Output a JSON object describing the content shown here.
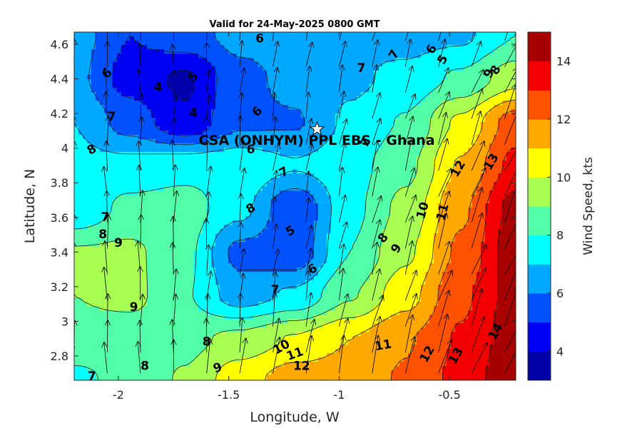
{
  "chart_data": {
    "type": "heatmap",
    "subtype": "filled-contour with wind vectors",
    "title": "Valid for 24-May-2025 0800 GMT",
    "xlabel": "Longitude, W",
    "ylabel": "Latitude, N",
    "colorbar_label": "Wind Speed, kts",
    "xlim": [
      -2.2,
      -0.2
    ],
    "ylim": [
      2.66,
      4.67
    ],
    "x_ticks": [
      -2,
      -1.5,
      -1,
      -0.5
    ],
    "x_tick_labels": [
      "-2",
      "-1.5",
      "-1",
      "-0.5"
    ],
    "y_ticks": [
      2.8,
      3.0,
      3.2,
      3.4,
      3.6,
      3.8,
      4.0,
      4.2,
      4.4,
      4.6
    ],
    "y_tick_labels": [
      "2.8",
      "3",
      "3.2",
      "3.4",
      "3.6",
      "3.8",
      "4",
      "4.2",
      "4.4",
      "4.6"
    ],
    "clim": [
      3,
      15
    ],
    "colorbar_ticks": [
      4,
      6,
      8,
      10,
      12,
      14
    ],
    "colorbar_tick_labels": [
      "4",
      "6",
      "8",
      "10",
      "12",
      "14"
    ],
    "levels": [
      3,
      4,
      5,
      6,
      7,
      8,
      9,
      10,
      11,
      12,
      13,
      14,
      15
    ],
    "level_colors": [
      "#0000a8",
      "#0000f5",
      "#0052ff",
      "#00a8ff",
      "#00ffff",
      "#52ffa8",
      "#a8ff52",
      "#ffff00",
      "#ffa800",
      "#ff5200",
      "#f50000",
      "#a80000"
    ],
    "station": {
      "lon": -1.1,
      "lat": 4.11,
      "label": "CSA (ONHYM) PPL EBS - Ghana",
      "marker": "white star"
    },
    "wind_speed_grid": {
      "lons": [
        -2.2,
        -1.95,
        -1.7,
        -1.45,
        -1.2,
        -0.95,
        -0.7,
        -0.45,
        -0.2
      ],
      "lats": [
        4.65,
        4.4,
        4.15,
        3.9,
        3.65,
        3.4,
        3.15,
        2.9,
        2.67
      ],
      "values": [
        [
          6.5,
          5.0,
          5.6,
          6.3,
          6.5,
          6.9,
          6.6,
          6.8,
          8.0
        ],
        [
          6.3,
          4.6,
          3.8,
          5.7,
          6.3,
          6.8,
          7.3,
          8.2,
          9.6
        ],
        [
          7.0,
          5.6,
          4.2,
          5.8,
          5.9,
          7.2,
          8.1,
          10.2,
          12.5
        ],
        [
          7.3,
          7.3,
          7.6,
          7.7,
          7.1,
          7.6,
          8.7,
          11.1,
          13.3
        ],
        [
          7.1,
          8.3,
          8.5,
          7.3,
          5.1,
          7.7,
          9.3,
          11.8,
          14.4
        ],
        [
          9.1,
          9.2,
          8.3,
          5.7,
          5.3,
          8.0,
          9.8,
          12.2,
          14.6
        ],
        [
          9.0,
          9.3,
          8.1,
          6.5,
          7.2,
          8.9,
          10.6,
          12.8,
          14.4
        ],
        [
          8.6,
          8.4,
          8.7,
          9.3,
          10.1,
          11.0,
          11.9,
          13.1,
          14.6
        ],
        [
          7.8,
          8.3,
          9.1,
          10.6,
          11.5,
          11.5,
          12.1,
          13.3,
          14.9
        ]
      ]
    },
    "contour_labels": [
      {
        "text": "6",
        "lon": -1.36,
        "lat": 4.63,
        "rot": 0
      },
      {
        "text": "7",
        "lon": -0.9,
        "lat": 4.46,
        "rot": 0
      },
      {
        "text": "7",
        "lon": -0.75,
        "lat": 4.54,
        "rot": -60
      },
      {
        "text": "6",
        "lon": -0.58,
        "lat": 4.57,
        "rot": -60
      },
      {
        "text": "5",
        "lon": -0.53,
        "lat": 4.51,
        "rot": -60
      },
      {
        "text": "9",
        "lon": -0.32,
        "lat": 4.43,
        "rot": -60
      },
      {
        "text": "8",
        "lon": -0.29,
        "lat": 4.45,
        "rot": -60
      },
      {
        "text": "6",
        "lon": -2.05,
        "lat": 4.43,
        "rot": -45
      },
      {
        "text": "5",
        "lon": -1.66,
        "lat": 4.41,
        "rot": -40
      },
      {
        "text": "4",
        "lon": -1.82,
        "lat": 4.35,
        "rot": 0
      },
      {
        "text": "4",
        "lon": -1.66,
        "lat": 4.2,
        "rot": 0
      },
      {
        "text": "7",
        "lon": -2.03,
        "lat": 4.18,
        "rot": 0
      },
      {
        "text": "6",
        "lon": -1.37,
        "lat": 4.21,
        "rot": -45
      },
      {
        "text": "8",
        "lon": -2.12,
        "lat": 3.99,
        "rot": -30
      },
      {
        "text": "6",
        "lon": -1.4,
        "lat": 3.99,
        "rot": 0
      },
      {
        "text": "7",
        "lon": -0.88,
        "lat": 4.03,
        "rot": -60
      },
      {
        "text": "7",
        "lon": -1.25,
        "lat": 3.86,
        "rot": -30
      },
      {
        "text": "12",
        "lon": -0.46,
        "lat": 3.88,
        "rot": -60
      },
      {
        "text": "13",
        "lon": -0.31,
        "lat": 3.92,
        "rot": -60
      },
      {
        "text": "8",
        "lon": -1.4,
        "lat": 3.65,
        "rot": -30
      },
      {
        "text": "10",
        "lon": -0.62,
        "lat": 3.64,
        "rot": -75
      },
      {
        "text": "11",
        "lon": -0.53,
        "lat": 3.63,
        "rot": -75
      },
      {
        "text": "7",
        "lon": -2.06,
        "lat": 3.6,
        "rot": 0
      },
      {
        "text": "8",
        "lon": -2.07,
        "lat": 3.5,
        "rot": 0
      },
      {
        "text": "5",
        "lon": -1.22,
        "lat": 3.52,
        "rot": -30
      },
      {
        "text": "9",
        "lon": -2.0,
        "lat": 3.45,
        "rot": 0
      },
      {
        "text": "8",
        "lon": -0.8,
        "lat": 3.48,
        "rot": -50
      },
      {
        "text": "9",
        "lon": -0.74,
        "lat": 3.42,
        "rot": -60
      },
      {
        "text": "6",
        "lon": -1.12,
        "lat": 3.3,
        "rot": -30
      },
      {
        "text": "7",
        "lon": -1.29,
        "lat": 3.18,
        "rot": 0
      },
      {
        "text": "9",
        "lon": -1.93,
        "lat": 3.08,
        "rot": 0
      },
      {
        "text": "14",
        "lon": -0.29,
        "lat": 2.94,
        "rot": -60
      },
      {
        "text": "8",
        "lon": -1.6,
        "lat": 2.88,
        "rot": 0
      },
      {
        "text": "11",
        "lon": -0.8,
        "lat": 2.86,
        "rot": -10
      },
      {
        "text": "10",
        "lon": -1.26,
        "lat": 2.85,
        "rot": -30
      },
      {
        "text": "11",
        "lon": -1.2,
        "lat": 2.81,
        "rot": -20
      },
      {
        "text": "12",
        "lon": -0.6,
        "lat": 2.81,
        "rot": -60
      },
      {
        "text": "13",
        "lon": -0.47,
        "lat": 2.8,
        "rot": -60
      },
      {
        "text": "8",
        "lon": -1.88,
        "lat": 2.74,
        "rot": 0
      },
      {
        "text": "9",
        "lon": -1.55,
        "lat": 2.73,
        "rot": -20
      },
      {
        "text": "12",
        "lon": -1.17,
        "lat": 2.74,
        "rot": 0
      },
      {
        "text": "7",
        "lon": -2.12,
        "lat": 2.68,
        "rot": 0
      }
    ],
    "wind_vectors": {
      "lons": [
        -2.2,
        -2.05,
        -1.9,
        -1.75,
        -1.6,
        -1.45,
        -1.3,
        -1.15,
        -1.0,
        -0.85,
        -0.7,
        -0.55,
        -0.4,
        -0.25
      ],
      "lats": [
        4.62,
        4.47,
        4.32,
        4.17,
        4.02,
        3.87,
        3.72,
        3.57,
        3.42,
        3.27,
        3.12,
        2.97,
        2.82,
        2.7
      ],
      "direction": "south-southwest winds, veering to southwest in the east"
    }
  }
}
